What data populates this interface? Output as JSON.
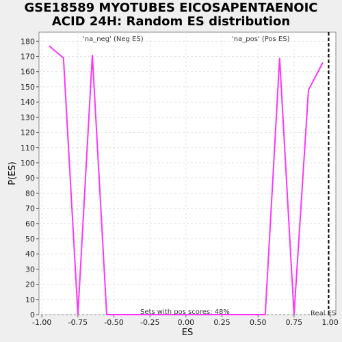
{
  "chart_data": {
    "type": "line",
    "title_line1": "GSE18589 MYOTUBES EICOSAPENTAENOIC",
    "title_line2": "ACID 24H: Random ES distribution",
    "xlabel": "ES",
    "ylabel": "P(ES)",
    "xlim": [
      -1.02,
      1.04
    ],
    "ylim": [
      0,
      186
    ],
    "xticks": [
      -1.0,
      -0.75,
      -0.5,
      -0.25,
      0.0,
      0.25,
      0.5,
      0.75,
      1.0
    ],
    "xtick_labels": [
      "-1.00",
      "-0.75",
      "-0.50",
      "-0.25",
      "0.00",
      "0.25",
      "0.50",
      "0.75",
      "1.00"
    ],
    "yticks": [
      0,
      10,
      20,
      30,
      40,
      50,
      60,
      70,
      80,
      90,
      100,
      110,
      120,
      130,
      140,
      150,
      160,
      170,
      180
    ],
    "grid": true,
    "series": [
      {
        "color": "#ff33ff",
        "x": [
          -0.95,
          -0.85,
          -0.75,
          -0.65,
          -0.55,
          -0.45,
          -0.35,
          -0.25,
          -0.15,
          -0.05,
          0.05,
          0.15,
          0.25,
          0.35,
          0.45,
          0.55,
          0.65,
          0.75,
          0.85,
          0.95
        ],
        "y": [
          177,
          169,
          0,
          171,
          0,
          0,
          0,
          0,
          0,
          0,
          0,
          0,
          0,
          0,
          0,
          0,
          169,
          0,
          148,
          166
        ]
      }
    ],
    "real_es": 0.99,
    "annotations": {
      "neg_label": "'na_neg' (Neg ES)",
      "pos_label": "'na_pos' (Pos ES)",
      "neg_color": "#4444cc",
      "pos_color": "#dd3333",
      "sets_text": "Sets with pos scores: 48%",
      "real_es_label": "Real ES"
    }
  }
}
